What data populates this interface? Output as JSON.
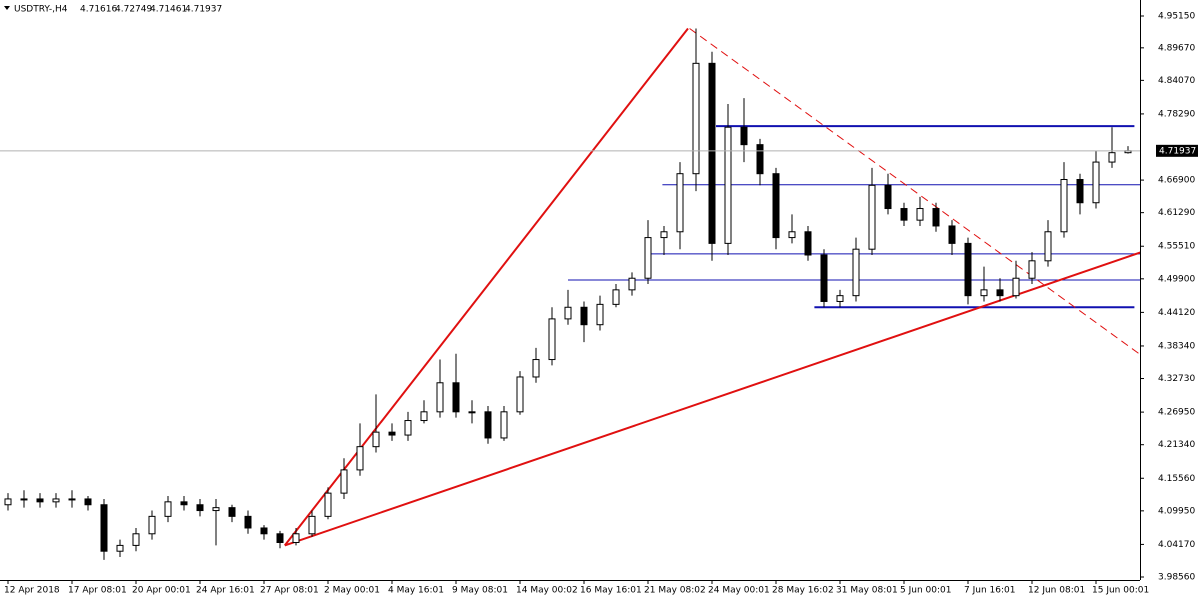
{
  "chart_data": {
    "type": "candlestick",
    "symbol": "USDTRY-,H4",
    "categories": [
      "12 Apr 2018",
      null,
      null,
      null,
      "17 Apr 08:01",
      null,
      null,
      null,
      "20 Apr 00:01",
      null,
      null,
      null,
      "24 Apr 16:01",
      null,
      null,
      null,
      "27 Apr 08:01",
      null,
      null,
      null,
      "2 May 00:01",
      null,
      null,
      null,
      "4 May 16:01",
      null,
      null,
      null,
      "9 May 08:01",
      null,
      null,
      null,
      "14 May 00:02",
      null,
      null,
      null,
      "16 May 16:01",
      null,
      null,
      null,
      "21 May 08:02",
      null,
      null,
      null,
      "24 May 00:01",
      null,
      null,
      null,
      "28 May 16:02",
      null,
      null,
      null,
      "31 May 08:01",
      null,
      null,
      null,
      "5 Jun 00:01",
      null,
      null,
      null,
      "7 Jun 16:01",
      null,
      null,
      null,
      "12 Jun 08:01",
      null,
      null,
      null,
      "15 Jun 00:01",
      null,
      null
    ],
    "open": [
      4.11,
      4.12,
      4.12,
      4.115,
      4.12,
      4.12,
      4.11,
      4.03,
      4.04,
      4.06,
      4.09,
      4.115,
      4.11,
      4.1,
      4.105,
      4.09,
      4.07,
      4.06,
      4.045,
      4.06,
      4.09,
      4.13,
      4.17,
      4.21,
      4.235,
      4.23,
      4.255,
      4.27,
      4.32,
      4.27,
      4.27,
      4.225,
      4.27,
      4.33,
      4.36,
      4.43,
      4.45,
      4.42,
      4.455,
      4.48,
      4.5,
      4.57,
      4.58,
      4.68,
      4.87,
      4.56,
      4.76,
      4.73,
      4.68,
      4.57,
      4.58,
      4.54,
      4.46,
      4.47,
      4.55,
      4.66,
      4.62,
      4.6,
      4.62,
      4.59,
      4.56,
      4.47,
      4.48,
      4.47,
      4.5,
      4.53,
      4.58,
      4.67,
      4.63,
      4.7,
      4.71616
    ],
    "high": [
      4.13,
      4.135,
      4.13,
      4.13,
      4.135,
      4.125,
      4.12,
      4.05,
      4.07,
      4.1,
      4.125,
      4.125,
      4.12,
      4.12,
      4.11,
      4.1,
      4.075,
      4.065,
      4.07,
      4.1,
      4.14,
      4.19,
      4.25,
      4.3,
      4.25,
      4.27,
      4.29,
      4.36,
      4.37,
      4.29,
      4.28,
      4.28,
      4.34,
      4.38,
      4.45,
      4.48,
      4.46,
      4.47,
      4.49,
      4.51,
      4.6,
      4.59,
      4.7,
      4.93,
      4.89,
      4.8,
      4.81,
      4.74,
      4.69,
      4.61,
      4.59,
      4.55,
      4.48,
      4.57,
      4.69,
      4.68,
      4.63,
      4.64,
      4.63,
      4.6,
      4.57,
      4.52,
      4.5,
      4.53,
      4.545,
      4.6,
      4.7,
      4.68,
      4.72,
      4.76,
      4.72749
    ],
    "low": [
      4.1,
      4.105,
      4.105,
      4.105,
      4.105,
      4.1,
      4.015,
      4.02,
      4.03,
      4.05,
      4.08,
      4.1,
      4.09,
      4.04,
      4.08,
      4.06,
      4.05,
      4.035,
      4.04,
      4.055,
      4.085,
      4.12,
      4.16,
      4.2,
      4.22,
      4.22,
      4.25,
      4.26,
      4.26,
      4.25,
      4.215,
      4.22,
      4.265,
      4.32,
      4.35,
      4.42,
      4.39,
      4.41,
      4.45,
      4.47,
      4.49,
      4.54,
      4.55,
      4.65,
      4.53,
      4.54,
      4.7,
      4.66,
      4.55,
      4.56,
      4.53,
      4.45,
      4.45,
      4.46,
      4.54,
      4.61,
      4.59,
      4.59,
      4.58,
      4.54,
      4.455,
      4.46,
      4.46,
      4.465,
      4.49,
      4.52,
      4.57,
      4.61,
      4.62,
      4.69,
      4.71461
    ],
    "close": [
      4.12,
      4.12,
      4.115,
      4.12,
      4.12,
      4.11,
      4.03,
      4.04,
      4.06,
      4.09,
      4.115,
      4.11,
      4.1,
      4.105,
      4.09,
      4.07,
      4.06,
      4.045,
      4.06,
      4.09,
      4.13,
      4.17,
      4.21,
      4.235,
      4.23,
      4.255,
      4.27,
      4.32,
      4.27,
      4.27,
      4.225,
      4.27,
      4.33,
      4.36,
      4.43,
      4.45,
      4.42,
      4.455,
      4.48,
      4.5,
      4.57,
      4.58,
      4.68,
      4.87,
      4.56,
      4.76,
      4.73,
      4.68,
      4.57,
      4.58,
      4.54,
      4.46,
      4.47,
      4.55,
      4.66,
      4.62,
      4.6,
      4.62,
      4.59,
      4.56,
      4.47,
      4.48,
      4.47,
      4.5,
      4.53,
      4.58,
      4.67,
      4.63,
      4.7,
      4.71616,
      4.71937
    ],
    "ylim": [
      3.98043,
      4.97905
    ],
    "yticks": [
      {
        "value": 4.9515,
        "label": "4.95150"
      },
      {
        "value": 4.8967,
        "label": "4.89670"
      },
      {
        "value": 4.8407,
        "label": "4.84070"
      },
      {
        "value": 4.7829,
        "label": "4.78290"
      },
      {
        "value": 4.669,
        "label": "4.66900"
      },
      {
        "value": 4.6129,
        "label": "4.61290"
      },
      {
        "value": 4.5551,
        "label": "4.55510"
      },
      {
        "value": 4.499,
        "label": "4.49900"
      },
      {
        "value": 4.4412,
        "label": "4.44120"
      },
      {
        "value": 4.3834,
        "label": "4.38340"
      },
      {
        "value": 4.3273,
        "label": "4.32730"
      },
      {
        "value": 4.2695,
        "label": "4.26950"
      },
      {
        "value": 4.2134,
        "label": "4.21340"
      },
      {
        "value": 4.1556,
        "label": "4.15560"
      },
      {
        "value": 4.0995,
        "label": "4.09950"
      },
      {
        "value": 4.0417,
        "label": "4.04170"
      },
      {
        "value": 3.9856,
        "label": "3.98560"
      }
    ],
    "trendlines": [
      {
        "color": "#e01010",
        "dashed": false,
        "x": [
          17.3,
          42.5
        ],
        "y": [
          4.04,
          4.93
        ]
      },
      {
        "color": "#e01010",
        "dashed": false,
        "x": [
          17.3,
          71.9
        ],
        "y": [
          4.04,
          4.555
        ]
      },
      {
        "color": "#e01010",
        "dashed": true,
        "x": [
          42.6,
          71.7
        ],
        "y": [
          4.93,
          4.35
        ]
      }
    ],
    "hlines": [
      {
        "color": "#1010b0",
        "width": 2,
        "x": [
          44.25,
          70.4
        ],
        "y": 4.762
      },
      {
        "color": "#1010b0",
        "width": 1,
        "x": [
          40.9,
          70.75
        ],
        "y": 4.661
      },
      {
        "color": "#1010b0",
        "width": 1,
        "x": [
          39.8,
          70.75
        ],
        "y": 4.542
      },
      {
        "color": "#1010b0",
        "width": 1,
        "x": [
          35,
          70.75
        ],
        "y": 4.497
      },
      {
        "color": "#1010b0",
        "width": 2,
        "x": [
          50.4,
          70.4
        ],
        "y": 4.45
      }
    ]
  }
}
